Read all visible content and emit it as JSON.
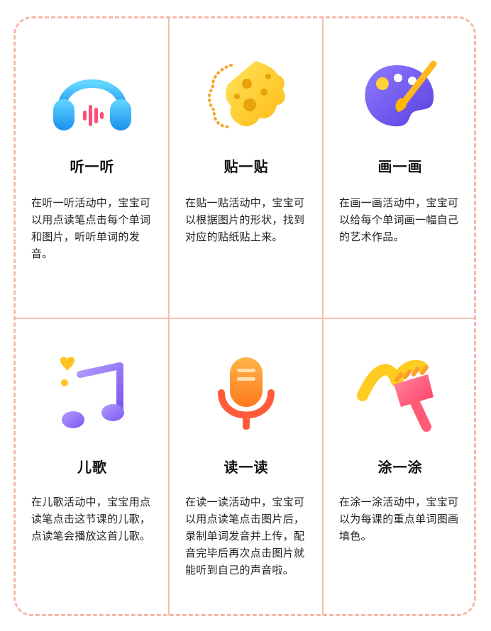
{
  "colors": {
    "border": "#f6b8a8",
    "grid": "#f3c0b2",
    "headphones": "#2aa8f2",
    "cheese": "#ffcc22",
    "palette": "#7b5ff2",
    "music_note": "#9b7cf2",
    "microphone": "#ff7a3d",
    "brush": "#ff4d6d"
  },
  "activities": [
    {
      "icon": "headphones-icon",
      "title": "听一听",
      "description": "在听一听活动中，宝宝可以用点读笔点击每个单词和图片，听听单词的发音。"
    },
    {
      "icon": "cheese-sticker-icon",
      "title": "贴一贴",
      "description": "在贴一贴活动中，宝宝可以根据图片的形状，找到对应的贴纸贴上来。"
    },
    {
      "icon": "paint-palette-icon",
      "title": "画一画",
      "description": "在画一画活动中，宝宝可以给每个单词画一幅自己的艺术作品。"
    },
    {
      "icon": "music-note-icon",
      "title": "儿歌",
      "description": "在儿歌活动中，宝宝用点读笔点击这节课的儿歌，点读笔会播放这首儿歌。"
    },
    {
      "icon": "microphone-icon",
      "title": "读一读",
      "description": "在读一读活动中，宝宝可以用点读笔点击图片后，录制单词发音并上传，配音完毕后再次点击图片就能听到自己的声音啦。"
    },
    {
      "icon": "paint-brush-icon",
      "title": "涂一涂",
      "description": "在涂一涂活动中，宝宝可以为每课的重点单词图画填色。"
    }
  ]
}
